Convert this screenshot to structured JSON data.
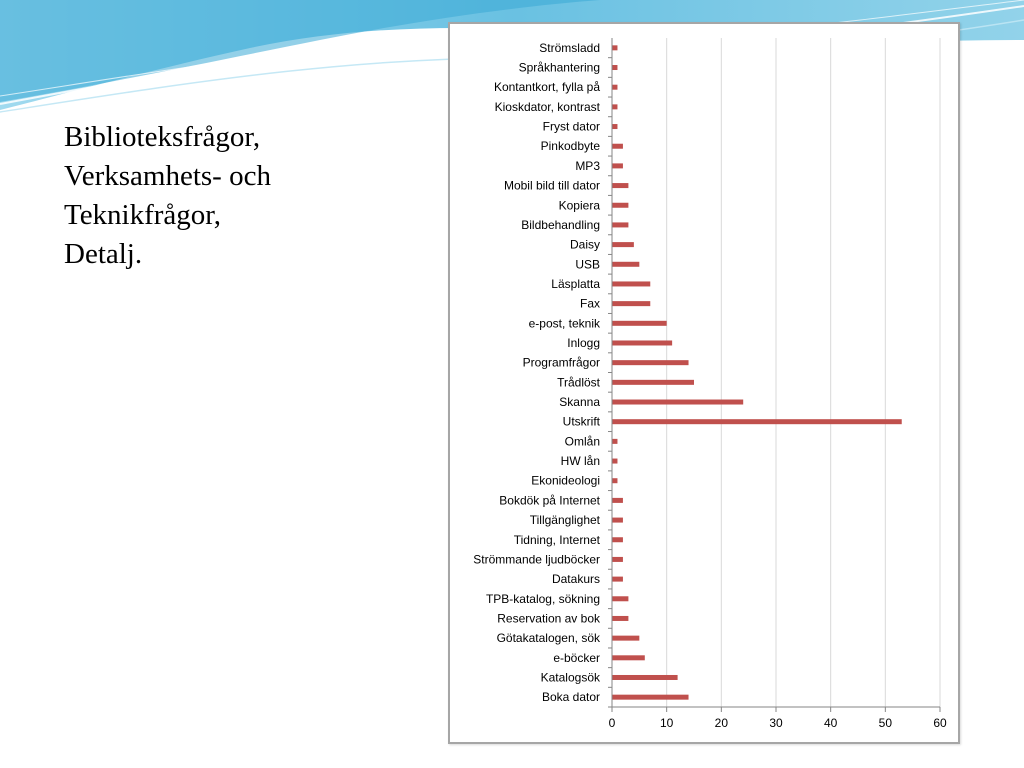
{
  "slide": {
    "title_lines": [
      "Biblioteksfrågor,",
      "Verksamhets- och",
      "Teknikfrågor,",
      "Detalj."
    ]
  },
  "colors": {
    "bar": "#c0504d",
    "grid": "#d9d9d9",
    "axis": "#868686",
    "frame": "#a6a6a6",
    "deco_blue": "#5bc0de"
  },
  "chart_data": {
    "type": "bar",
    "orientation": "horizontal",
    "categories": [
      "Strömsladd",
      "Språkhantering",
      "Kontantkort, fylla på",
      "Kioskdator, kontrast",
      "Fryst dator",
      "Pinkodbyte",
      "MP3",
      "Mobil bild till dator",
      "Kopiera",
      "Bildbehandling",
      "Daisy",
      "USB",
      "Läsplatta",
      "Fax",
      "e-post, teknik",
      "Inlogg",
      "Programfrågor",
      "Trådlöst",
      "Skanna",
      "Utskrift",
      "Omlån",
      "HW lån",
      "Ekonideologi",
      "Bokdök på Internet",
      "Tillgänglighet",
      "Tidning, Internet",
      "Strömmande ljudböcker",
      "Datakurs",
      "TPB-katalog, sökning",
      "Reservation av bok",
      "Götakatalogen, sök",
      "e-böcker",
      "Katalogsök",
      "Boka dator"
    ],
    "values": [
      1,
      1,
      1,
      1,
      1,
      2,
      2,
      3,
      3,
      3,
      4,
      5,
      7,
      7,
      10,
      11,
      14,
      15,
      24,
      53,
      1,
      1,
      1,
      2,
      2,
      2,
      2,
      2,
      3,
      3,
      5,
      6,
      12,
      14
    ],
    "xlim": [
      0,
      60
    ],
    "xticks": [
      "0",
      "10",
      "20",
      "30",
      "40",
      "50",
      "60"
    ],
    "grid": true,
    "legend": "none"
  }
}
